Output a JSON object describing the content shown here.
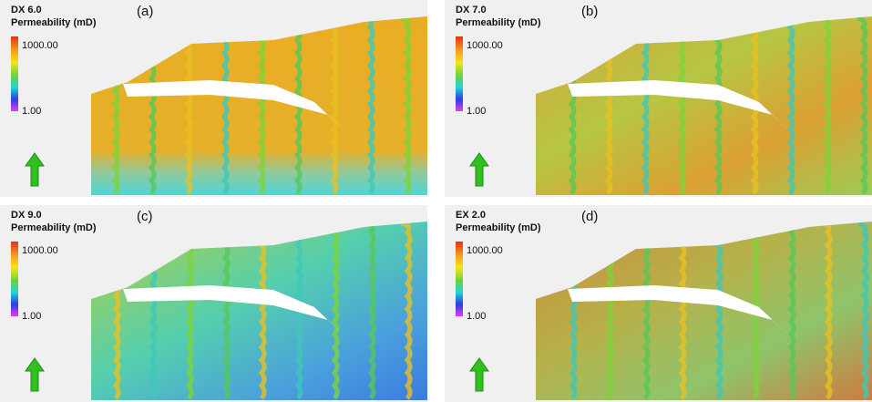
{
  "panels": [
    {
      "label": "(a)",
      "model": "DX 6.0",
      "property": "Permeability (mD)",
      "max_label": "1000.00",
      "min_label": "1.00"
    },
    {
      "label": "(b)",
      "model": "DX 7.0",
      "property": "Permeability (mD)",
      "max_label": "1000.00",
      "min_label": "1.00"
    },
    {
      "label": "(c)",
      "model": "DX 9.0",
      "property": "Permeability (mD)",
      "max_label": "1000.00",
      "min_label": "1.00"
    },
    {
      "label": "(d)",
      "model": "EX 2.0",
      "property": "Permeability (mD)",
      "max_label": "1000.00",
      "min_label": "1.00"
    }
  ]
}
